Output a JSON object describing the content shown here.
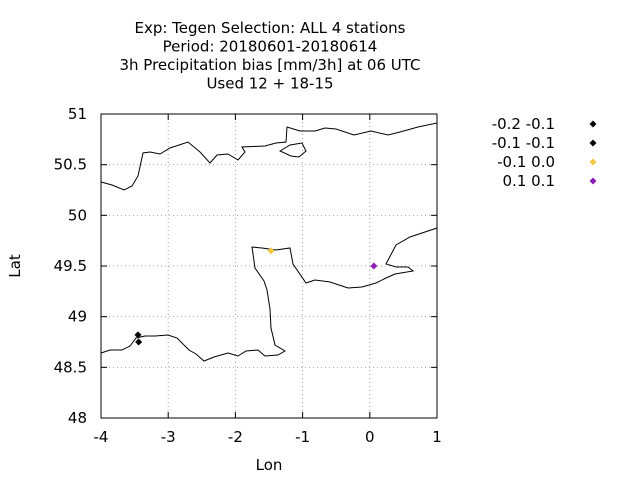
{
  "chart_data": {
    "type": "scatter",
    "title_lines": [
      "Exp: Tegen   Selection: ALL      4 stations",
      "Period: 20180601-20180614",
      "3h Precipitation bias [mm/3h] at  06 UTC",
      "Used  12 + 18-15"
    ],
    "xlabel": "Lon",
    "ylabel": "Lat",
    "xlim": [
      -4,
      1
    ],
    "ylim": [
      48,
      51
    ],
    "xticks": [
      "-4",
      "-3",
      "-2",
      "-1",
      "0",
      "1"
    ],
    "yticks": [
      "48",
      "48.5",
      "49",
      "49.5",
      "50",
      "50.5",
      "51"
    ],
    "grid": true,
    "legend_position": "right",
    "series": [
      {
        "name": "-0.2 -0.1",
        "color": "#000000",
        "points": [
          [
            -3.45,
            48.82
          ]
        ]
      },
      {
        "name": "-0.1 -0.1",
        "color": "#000000",
        "points": [
          [
            -3.44,
            48.75
          ]
        ]
      },
      {
        "name": "-0.1 0.0",
        "color": "#f5c842",
        "points": [
          [
            -1.47,
            49.65
          ]
        ]
      },
      {
        "name": "0.1 0.1",
        "color": "#8a1eb5",
        "points": [
          [
            0.06,
            49.5
          ]
        ]
      }
    ]
  }
}
